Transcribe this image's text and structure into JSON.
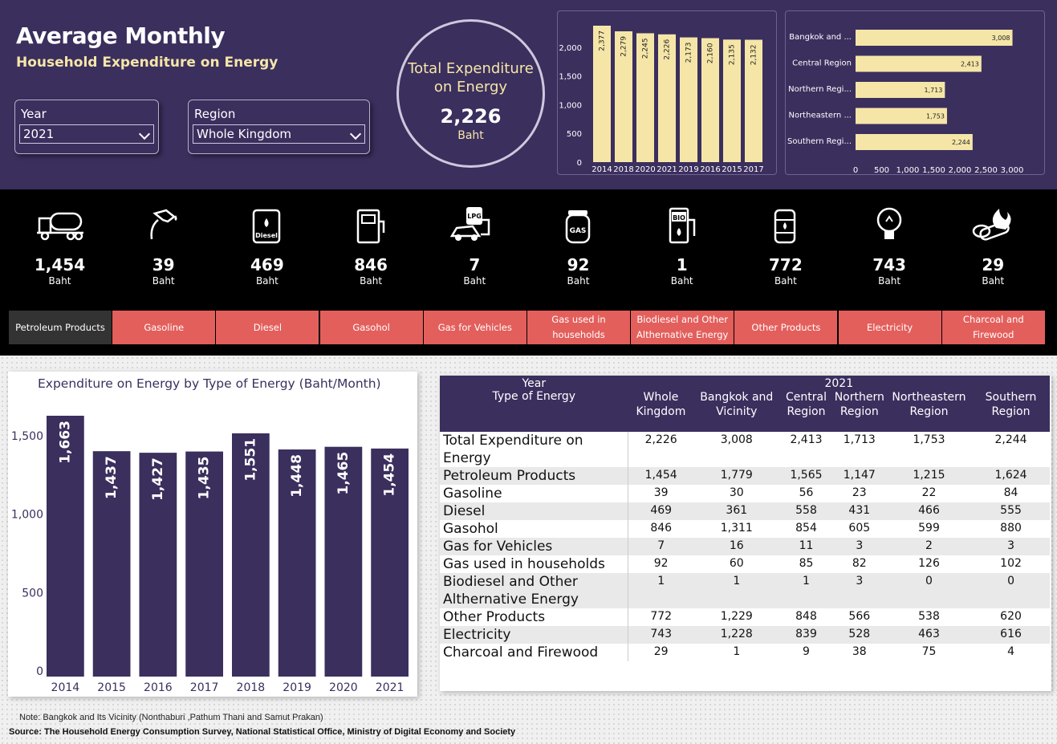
{
  "header": {
    "title": "Average Monthly",
    "subtitle": "Household Expenditure on Energy"
  },
  "slicers": {
    "year": {
      "label": "Year",
      "value": "2021"
    },
    "region": {
      "label": "Region",
      "value": "Whole Kingdom"
    }
  },
  "kpi": {
    "title_line1": "Total Expenditure",
    "title_line2": "on Energy",
    "value": "2,226",
    "unit": "Baht"
  },
  "colors": {
    "header_bg": "#3b2f5e",
    "bar": "#f5e6a8",
    "button": "#e35f5c",
    "button_active": "#333333",
    "accent_text": "#f5e6a8"
  },
  "chart_data": [
    {
      "type": "bar",
      "categories": [
        "2014",
        "2018",
        "2020",
        "2021",
        "2019",
        "2016",
        "2015",
        "2017"
      ],
      "values": [
        2377,
        2279,
        2245,
        2226,
        2173,
        2160,
        2135,
        2132
      ],
      "labels": [
        "2,377",
        "2,279",
        "2,245",
        "2,226",
        "2,173",
        "2,160",
        "2,135",
        "2,132"
      ],
      "yticks": [
        "0",
        "500",
        "1,000",
        "1,500",
        "2,000"
      ],
      "ylim": [
        0,
        2377
      ]
    },
    {
      "type": "bar",
      "orientation": "horizontal",
      "categories": [
        "Bangkok and ...",
        "Central Region",
        "Northern Regi...",
        "Northeastern ...",
        "Southern Regi..."
      ],
      "values": [
        3008,
        2413,
        1713,
        1753,
        2244
      ],
      "labels": [
        "3,008",
        "2,413",
        "1,713",
        "1,753",
        "2,244"
      ],
      "xticks": [
        "0",
        "500",
        "1,000",
        "1,500",
        "2,000",
        "2,500",
        "3,000"
      ],
      "xlim": [
        0,
        3000
      ]
    },
    {
      "type": "bar",
      "title": "Expenditure on Energy by Type of Energy (Baht/Month)",
      "categories": [
        "2014",
        "2015",
        "2016",
        "2017",
        "2018",
        "2019",
        "2020",
        "2021"
      ],
      "values": [
        1663,
        1437,
        1427,
        1435,
        1551,
        1448,
        1465,
        1454
      ],
      "labels": [
        "1,663",
        "1,437",
        "1,427",
        "1,435",
        "1,551",
        "1,448",
        "1,465",
        "1,454"
      ],
      "yticks": [
        "0",
        "500",
        "1,000",
        "1,500"
      ],
      "ylim": [
        0,
        1663
      ]
    }
  ],
  "energy_types": [
    {
      "icon": "tanker-truck-icon",
      "value": "1,454",
      "unit": "Baht",
      "button": "Petroleum Products"
    },
    {
      "icon": "fuel-nozzle-icon",
      "value": "39",
      "unit": "Baht",
      "button": "Gasoline"
    },
    {
      "icon": "diesel-can-icon",
      "value": "469",
      "unit": "Baht",
      "button": "Diesel",
      "icon_text": "Diesel"
    },
    {
      "icon": "fuel-pump-icon",
      "value": "846",
      "unit": "Baht",
      "button": "Gasohol"
    },
    {
      "icon": "lpg-car-icon",
      "value": "7",
      "unit": "Baht",
      "button": "Gas for Vehicles",
      "icon_text": "LPG"
    },
    {
      "icon": "gas-cylinder-icon",
      "value": "92",
      "unit": "Baht",
      "button_line1": "Gas used in",
      "button_line2": "households",
      "icon_text": "GAS"
    },
    {
      "icon": "bio-pump-icon",
      "value": "1",
      "unit": "Baht",
      "button_line1": "Biodiesel and Other",
      "button_line2": "Althernative Energy",
      "icon_text": "BIO"
    },
    {
      "icon": "oil-barrel-icon",
      "value": "772",
      "unit": "Baht",
      "button": "Other Products"
    },
    {
      "icon": "light-bulb-icon",
      "value": "743",
      "unit": "Baht",
      "button": "Electricity"
    },
    {
      "icon": "firewood-icon",
      "value": "29",
      "unit": "Baht",
      "button_line1": "Charcoal and",
      "button_line2": "Firewood"
    }
  ],
  "table": {
    "year_label": "Year",
    "year_value": "2021",
    "type_label": "Type of Energy",
    "columns": [
      {
        "l1": "Whole",
        "l2": "Kingdom"
      },
      {
        "l1": "Bangkok and",
        "l2": "Vicinity"
      },
      {
        "l1": "Central",
        "l2": "Region"
      },
      {
        "l1": "Northern",
        "l2": "Region"
      },
      {
        "l1": "Northeastern",
        "l2": "Region"
      },
      {
        "l1": "Southern",
        "l2": "Region"
      }
    ],
    "rows": [
      {
        "l1": "Total Expenditure on",
        "l2": "Energy",
        "v": [
          "2,226",
          "3,008",
          "2,413",
          "1,713",
          "1,753",
          "2,244"
        ]
      },
      {
        "l1": "Petroleum Products",
        "v": [
          "1,454",
          "1,779",
          "1,565",
          "1,147",
          "1,215",
          "1,624"
        ]
      },
      {
        "l1": "Gasoline",
        "v": [
          "39",
          "30",
          "56",
          "23",
          "22",
          "84"
        ]
      },
      {
        "l1": "Diesel",
        "v": [
          "469",
          "361",
          "558",
          "431",
          "466",
          "555"
        ]
      },
      {
        "l1": "Gasohol",
        "v": [
          "846",
          "1,311",
          "854",
          "605",
          "599",
          "880"
        ]
      },
      {
        "l1": "Gas for Vehicles",
        "v": [
          "7",
          "16",
          "11",
          "3",
          "2",
          "3"
        ]
      },
      {
        "l1": "Gas used in households",
        "v": [
          "92",
          "60",
          "85",
          "82",
          "126",
          "102"
        ]
      },
      {
        "l1": "Biodiesel and Other",
        "l2": "Althernative Energy",
        "v": [
          "1",
          "1",
          "1",
          "3",
          "0",
          "0"
        ]
      },
      {
        "l1": "Other Products",
        "v": [
          "772",
          "1,229",
          "848",
          "566",
          "538",
          "620"
        ]
      },
      {
        "l1": "Electricity",
        "v": [
          "743",
          "1,228",
          "839",
          "528",
          "463",
          "616"
        ]
      },
      {
        "l1": "Charcoal and Firewood",
        "v": [
          "29",
          "1",
          "9",
          "38",
          "75",
          "4"
        ]
      }
    ]
  },
  "footer": {
    "note": "Note: Bangkok and Its Vicinity (Nonthaburi ,Pathum Thani and Samut Prakan)",
    "source": "Source: The Household Energy Consumption Survey, National Statistical Office, Ministry of Digital Economy and Society"
  }
}
